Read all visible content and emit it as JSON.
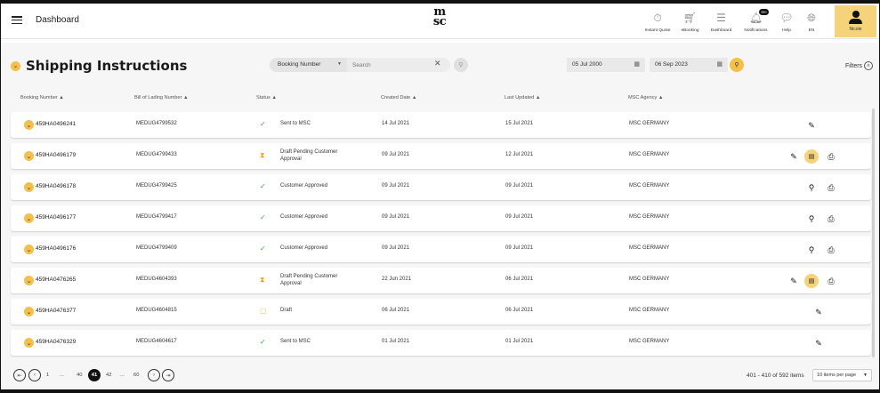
{
  "header": {
    "app_title": "Dashboard",
    "logo_text": "msc",
    "nav": [
      {
        "label": "Instant Quote",
        "icon": "stopwatch-icon"
      },
      {
        "label": "eBooking",
        "icon": "cart-icon"
      },
      {
        "label": "Dashboard",
        "icon": "sliders-icon"
      },
      {
        "label": "Notifications",
        "icon": "bell-icon",
        "badge": "99+"
      },
      {
        "label": "Help",
        "icon": "help-chat-icon"
      },
      {
        "label": "EN",
        "icon": "globe-icon"
      }
    ],
    "user_label": "Nicole"
  },
  "toolbar": {
    "title": "Shipping Instructions",
    "search_type": "Booking Number",
    "search_placeholder": "Search",
    "date_from": "05 Jul 2000",
    "date_to": "06 Sep 2023",
    "filters_label": "Filters"
  },
  "columns": [
    "Booking Number",
    "Bill of Lading Number",
    "Status",
    "Created Date",
    "Last Updated",
    "MSC Agency"
  ],
  "rows": [
    {
      "booking": "459HA0496241",
      "bol": "MEDUG4799532",
      "status": "Sent to MSC",
      "status_type": "sent",
      "created": "14 Jul 2021",
      "updated": "15 Jul 2021",
      "agency": "MSC GERMANY"
    },
    {
      "booking": "459HA0496179",
      "bol": "MEDUG4799433",
      "status": "Draft Pending Customer Approval",
      "status_type": "pending",
      "created": "09 Jul 2021",
      "updated": "12 Jul 2021",
      "agency": "MSC GERMANY"
    },
    {
      "booking": "459HA0496178",
      "bol": "MEDUG4799425",
      "status": "Customer Approved",
      "status_type": "approved",
      "created": "09 Jul 2021",
      "updated": "09 Jul 2021",
      "agency": "MSC GERMANY"
    },
    {
      "booking": "459HA0496177",
      "bol": "MEDUG4799417",
      "status": "Customer Approved",
      "status_type": "approved",
      "created": "09 Jul 2021",
      "updated": "09 Jul 2021",
      "agency": "MSC GERMANY"
    },
    {
      "booking": "459HA0496176",
      "bol": "MEDUG4799409",
      "status": "Customer Approved",
      "status_type": "approved",
      "created": "09 Jul 2021",
      "updated": "09 Jul 2021",
      "agency": "MSC GERMANY"
    },
    {
      "booking": "459HA0476265",
      "bol": "MEDUG4604393",
      "status": "Draft Pending Customer Approval",
      "status_type": "pending",
      "created": "22 Jun 2021",
      "updated": "06 Jul 2021",
      "agency": "MSC GERMANY"
    },
    {
      "booking": "459HA0476377",
      "bol": "MEDUG4604815",
      "status": "Draft",
      "status_type": "draft",
      "created": "06 Jul 2021",
      "updated": "06 Jul 2021",
      "agency": "MSC GERMANY"
    },
    {
      "booking": "459HA0476329",
      "bol": "MEDUG4604617",
      "status": "Sent to MSC",
      "status_type": "sent",
      "created": "01 Jul 2021",
      "updated": "01 Jul 2021",
      "agency": "MSC GERMANY"
    }
  ],
  "pagination": {
    "pages": [
      "1",
      "...",
      "40",
      "41",
      "42",
      "...",
      "60"
    ],
    "current": "41",
    "items_count": "401 - 410 of 592 items",
    "per_page": "10 items per page"
  },
  "colors": {
    "accent": "#f5c04a",
    "user_bg": "#f5d37a",
    "ok": "#3aa14a",
    "pending": "#e0a51e"
  }
}
